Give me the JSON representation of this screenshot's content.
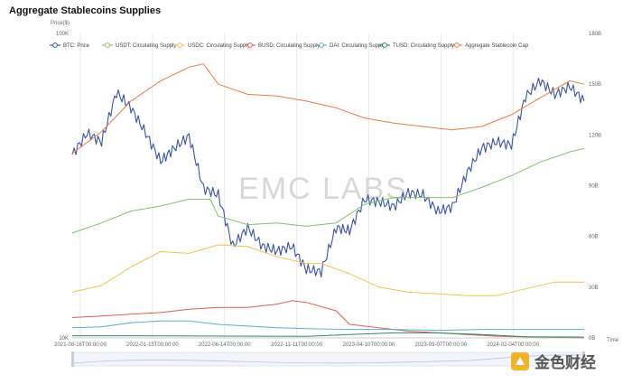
{
  "title": "Aggregate Stablecoins Supplies",
  "watermark": "EMC LABS",
  "brand_text": "金色财经",
  "chart_data": {
    "type": "line",
    "title": "Aggregate Stablecoins Supplies",
    "left_axis": {
      "label": "Price($)",
      "scale": "log",
      "range": [
        10000,
        100000
      ],
      "ticks": [
        {
          "value": 100000,
          "label": "100K"
        },
        {
          "value": 10000,
          "label": "10K"
        }
      ]
    },
    "right_axis": {
      "unit": "USD",
      "range": [
        0,
        180
      ],
      "ticks": [
        {
          "value": 180,
          "label": "180B"
        },
        {
          "value": 150,
          "label": "150B"
        },
        {
          "value": 120,
          "label": "120B"
        },
        {
          "value": 90,
          "label": "90B"
        },
        {
          "value": 60,
          "label": "60B"
        },
        {
          "value": 30,
          "label": "30B"
        },
        {
          "value": 0,
          "label": "0B"
        }
      ]
    },
    "x_axis": {
      "label": "Time",
      "range": [
        "2021-08-01",
        "2024-07-01"
      ],
      "ticks": [
        "2021-08-18T00:00:00",
        "2022-01-15T00:00:00",
        "2022-06-14T00:00:00",
        "2022-11-11T00:00:00",
        "2023-04-10T00:00:00",
        "2023-09-07T00:00:00",
        "2024-02-04T00:00:00"
      ]
    },
    "grid": "vertical",
    "legend_position": "top",
    "series": [
      {
        "name": "BTC: Price",
        "axis": "left",
        "color": "#3a52a8",
        "x": [
          "2021-08-01",
          "2021-09-01",
          "2021-10-01",
          "2021-11-01",
          "2021-12-01",
          "2022-01-01",
          "2022-02-01",
          "2022-03-01",
          "2022-04-01",
          "2022-05-01",
          "2022-06-01",
          "2022-07-01",
          "2022-08-01",
          "2022-09-01",
          "2022-10-01",
          "2022-11-01",
          "2022-12-01",
          "2023-01-01",
          "2023-02-01",
          "2023-03-01",
          "2023-04-01",
          "2023-05-01",
          "2023-06-01",
          "2023-07-01",
          "2023-08-01",
          "2023-09-01",
          "2023-10-01",
          "2023-11-01",
          "2023-12-01",
          "2024-01-01",
          "2024-02-01",
          "2024-03-01",
          "2024-04-01",
          "2024-05-01",
          "2024-06-01",
          "2024-07-01"
        ],
        "values": [
          40000,
          47000,
          44000,
          64000,
          57000,
          47000,
          38000,
          42000,
          46000,
          31000,
          29500,
          20000,
          23000,
          20000,
          19300,
          20000,
          16800,
          16500,
          23000,
          22500,
          28500,
          28000,
          27000,
          30000,
          29500,
          26000,
          27000,
          35000,
          42000,
          44000,
          43000,
          62000,
          70000,
          63000,
          67000,
          60000
        ]
      },
      {
        "name": "USDT: Circulating Supply",
        "axis": "right",
        "color": "#7ec46a",
        "x": [
          "2021-08-01",
          "2021-10-01",
          "2021-12-01",
          "2022-02-01",
          "2022-04-01",
          "2022-05-15",
          "2022-06-01",
          "2022-08-01",
          "2022-10-01",
          "2022-12-01",
          "2023-02-01",
          "2023-04-01",
          "2023-06-01",
          "2023-08-01",
          "2023-10-01",
          "2023-12-01",
          "2024-02-01",
          "2024-04-01",
          "2024-06-01",
          "2024-07-01"
        ],
        "values": [
          62,
          68,
          75,
          78,
          82,
          82,
          72,
          67,
          68,
          66,
          68,
          79,
          83,
          83,
          83,
          89,
          96,
          104,
          110,
          112
        ]
      },
      {
        "name": "USDC: Circulating Supply",
        "axis": "right",
        "color": "#f5c24b",
        "x": [
          "2021-08-01",
          "2021-10-01",
          "2021-12-01",
          "2022-02-01",
          "2022-04-01",
          "2022-06-01",
          "2022-08-01",
          "2022-10-01",
          "2022-12-01",
          "2023-01-01",
          "2023-03-01",
          "2023-05-01",
          "2023-07-01",
          "2023-09-01",
          "2023-11-01",
          "2024-01-01",
          "2024-03-01",
          "2024-05-01",
          "2024-07-01"
        ],
        "values": [
          27,
          31,
          42,
          51,
          50,
          55,
          54,
          48,
          44,
          44,
          38,
          30,
          27,
          26,
          25,
          25,
          29,
          33,
          33
        ]
      },
      {
        "name": "BUSD: Circulating Supply",
        "axis": "right",
        "color": "#e35d4f",
        "x": [
          "2021-08-01",
          "2021-10-01",
          "2021-12-01",
          "2022-02-01",
          "2022-04-01",
          "2022-06-01",
          "2022-08-01",
          "2022-10-01",
          "2022-11-01",
          "2022-12-01",
          "2023-02-01",
          "2023-03-01",
          "2023-05-01",
          "2023-07-01",
          "2023-09-01",
          "2024-01-01",
          "2024-07-01"
        ],
        "values": [
          12,
          13,
          14,
          15,
          17,
          18,
          18,
          20,
          22,
          21,
          16,
          8,
          6,
          4,
          3,
          1,
          0
        ]
      },
      {
        "name": "DAI: Circulating Supply",
        "axis": "right",
        "color": "#5aaed1",
        "x": [
          "2021-08-01",
          "2021-10-01",
          "2021-12-01",
          "2022-02-01",
          "2022-04-01",
          "2022-06-01",
          "2022-08-01",
          "2022-10-01",
          "2022-12-01",
          "2023-03-01",
          "2023-06-01",
          "2023-09-01",
          "2023-12-01",
          "2024-03-01",
          "2024-07-01"
        ],
        "values": [
          6,
          6.5,
          9,
          10,
          10,
          8,
          7,
          6,
          5.5,
          5,
          5,
          4.5,
          5,
          5,
          5
        ]
      },
      {
        "name": "TUSD: Circulating Supply",
        "axis": "right",
        "color": "#2f8a5a",
        "x": [
          "2021-08-01",
          "2022-03-01",
          "2022-12-01",
          "2023-03-01",
          "2023-06-01",
          "2023-09-01",
          "2023-12-01",
          "2024-03-01",
          "2024-07-01"
        ],
        "values": [
          1.3,
          1.2,
          0.9,
          2,
          3,
          3,
          2,
          0.7,
          0.5
        ]
      },
      {
        "name": "Aggregate Stablecoin Cap",
        "axis": "right",
        "color": "#ef7a45",
        "x": [
          "2021-08-01",
          "2021-10-01",
          "2021-12-01",
          "2022-02-01",
          "2022-04-01",
          "2022-05-01",
          "2022-06-01",
          "2022-08-01",
          "2022-10-01",
          "2022-12-01",
          "2023-02-01",
          "2023-04-01",
          "2023-06-01",
          "2023-08-01",
          "2023-10-01",
          "2023-12-01",
          "2024-02-01",
          "2024-04-01",
          "2024-06-01",
          "2024-07-01"
        ],
        "values": [
          109,
          122,
          140,
          152,
          160,
          162,
          150,
          144,
          143,
          140,
          136,
          130,
          127,
          125,
          123,
          125,
          132,
          142,
          152,
          150
        ]
      }
    ]
  }
}
